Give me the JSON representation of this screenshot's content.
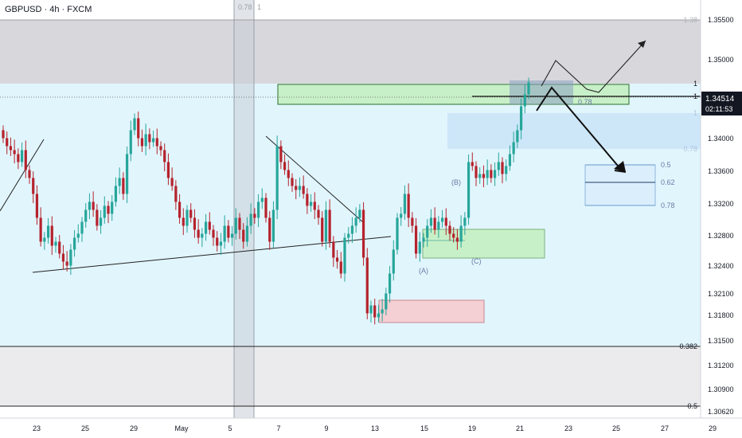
{
  "header": {
    "symbol_label": "GBPUSD · 4h · FXCM"
  },
  "price_tag": {
    "price": "1.34514",
    "countdown": "02:11:53"
  },
  "vertical_band": {
    "labels": [
      "0.78",
      "1"
    ]
  },
  "colors": {
    "bg": "#ffffff",
    "gray_zone": "#d4d3d8",
    "lightblue_zone": "#e1f5fd",
    "bottom_zone": "#ebebed",
    "green_zone": "#c8f0c8",
    "pink_zone": "#f4cfd3",
    "blue_zone": "#c8e4f8",
    "bull": "#26a69a",
    "bear": "#b5222c",
    "axis_text": "#131722",
    "fib_text": "#6a7ba5"
  },
  "chart_data": {
    "type": "candlestick",
    "title": "GBPUSD · 4h · FXCM",
    "xlabel": "",
    "ylabel": "",
    "ylim": [
      1.3045,
      1.3578
    ],
    "y_ticks": [
      "1.35500",
      "1.35000",
      "1.34000",
      "1.33600",
      "1.33200",
      "1.32800",
      "1.32400",
      "1.32100",
      "1.31800",
      "1.31500",
      "1.31200",
      "1.30900",
      "1.30620"
    ],
    "x_ticks": [
      "23",
      "25",
      "29",
      "May",
      "5",
      "7",
      "9",
      "13",
      "15",
      "19",
      "21",
      "23",
      "25",
      "27",
      "29"
    ],
    "fib_levels_right": [
      {
        "label": "1.38",
        "value": 1.3554
      },
      {
        "label": "1",
        "value": 1.3475
      },
      {
        "label": "1",
        "value": 1.3462
      },
      {
        "label": "1",
        "value": 1.3438
      },
      {
        "label": "0.78",
        "value": 1.3387
      },
      {
        "label": "0.382",
        "value": 1.3145
      },
      {
        "label": "0.5",
        "value": 1.3073
      }
    ],
    "fib_levels_projection": [
      {
        "label": "0.78",
        "value": 1.3453
      },
      {
        "label": "0.5",
        "value": 1.3366
      },
      {
        "label": "0.62",
        "value": 1.3342
      },
      {
        "label": "0.78",
        "value": 1.3312
      }
    ],
    "wave_labels": [
      "(A)",
      "(B)",
      "(C)"
    ],
    "close": [
      1.34,
      1.339,
      1.3385,
      1.338,
      1.337,
      1.3385,
      1.336,
      1.335,
      1.333,
      1.33,
      1.327,
      1.3275,
      1.329,
      1.3265,
      1.327,
      1.3255,
      1.3245,
      1.324,
      1.326,
      1.3275,
      1.328,
      1.3295,
      1.331,
      1.332,
      1.331,
      1.329,
      1.33,
      1.3315,
      1.3305,
      1.332,
      1.334,
      1.335,
      1.333,
      1.338,
      1.341,
      1.3425,
      1.34,
      1.339,
      1.3405,
      1.3395,
      1.34,
      1.339,
      1.3385,
      1.337,
      1.335,
      1.334,
      1.332,
      1.33,
      1.329,
      1.331,
      1.33,
      1.3285,
      1.3275,
      1.328,
      1.3295,
      1.3285,
      1.3275,
      1.3265,
      1.327,
      1.329,
      1.3275,
      1.328,
      1.33,
      1.3285,
      1.327,
      1.329,
      1.3305,
      1.33,
      1.332,
      1.3325,
      1.33,
      1.327,
      1.331,
      1.339,
      1.337,
      1.336,
      1.335,
      1.334,
      1.3335,
      1.334,
      1.333,
      1.3315,
      1.332,
      1.331,
      1.33,
      1.327,
      1.331,
      1.327,
      1.325,
      1.3245,
      1.323,
      1.3275,
      1.328,
      1.329,
      1.33,
      1.331,
      1.325,
      1.318,
      1.319,
      1.3175,
      1.318,
      1.3185,
      1.3205,
      1.323,
      1.326,
      1.33,
      1.3305,
      1.333,
      1.33,
      1.329,
      1.3255,
      1.327,
      1.3275,
      1.329,
      1.33,
      1.3285,
      1.3295,
      1.33,
      1.329,
      1.328,
      1.3275,
      1.327,
      1.329,
      1.33,
      1.337,
      1.3365,
      1.335,
      1.3355,
      1.335,
      1.336,
      1.335,
      1.336,
      1.337,
      1.3355,
      1.3365,
      1.338,
      1.3395,
      1.341,
      1.344,
      1.3455,
      1.347
    ]
  }
}
